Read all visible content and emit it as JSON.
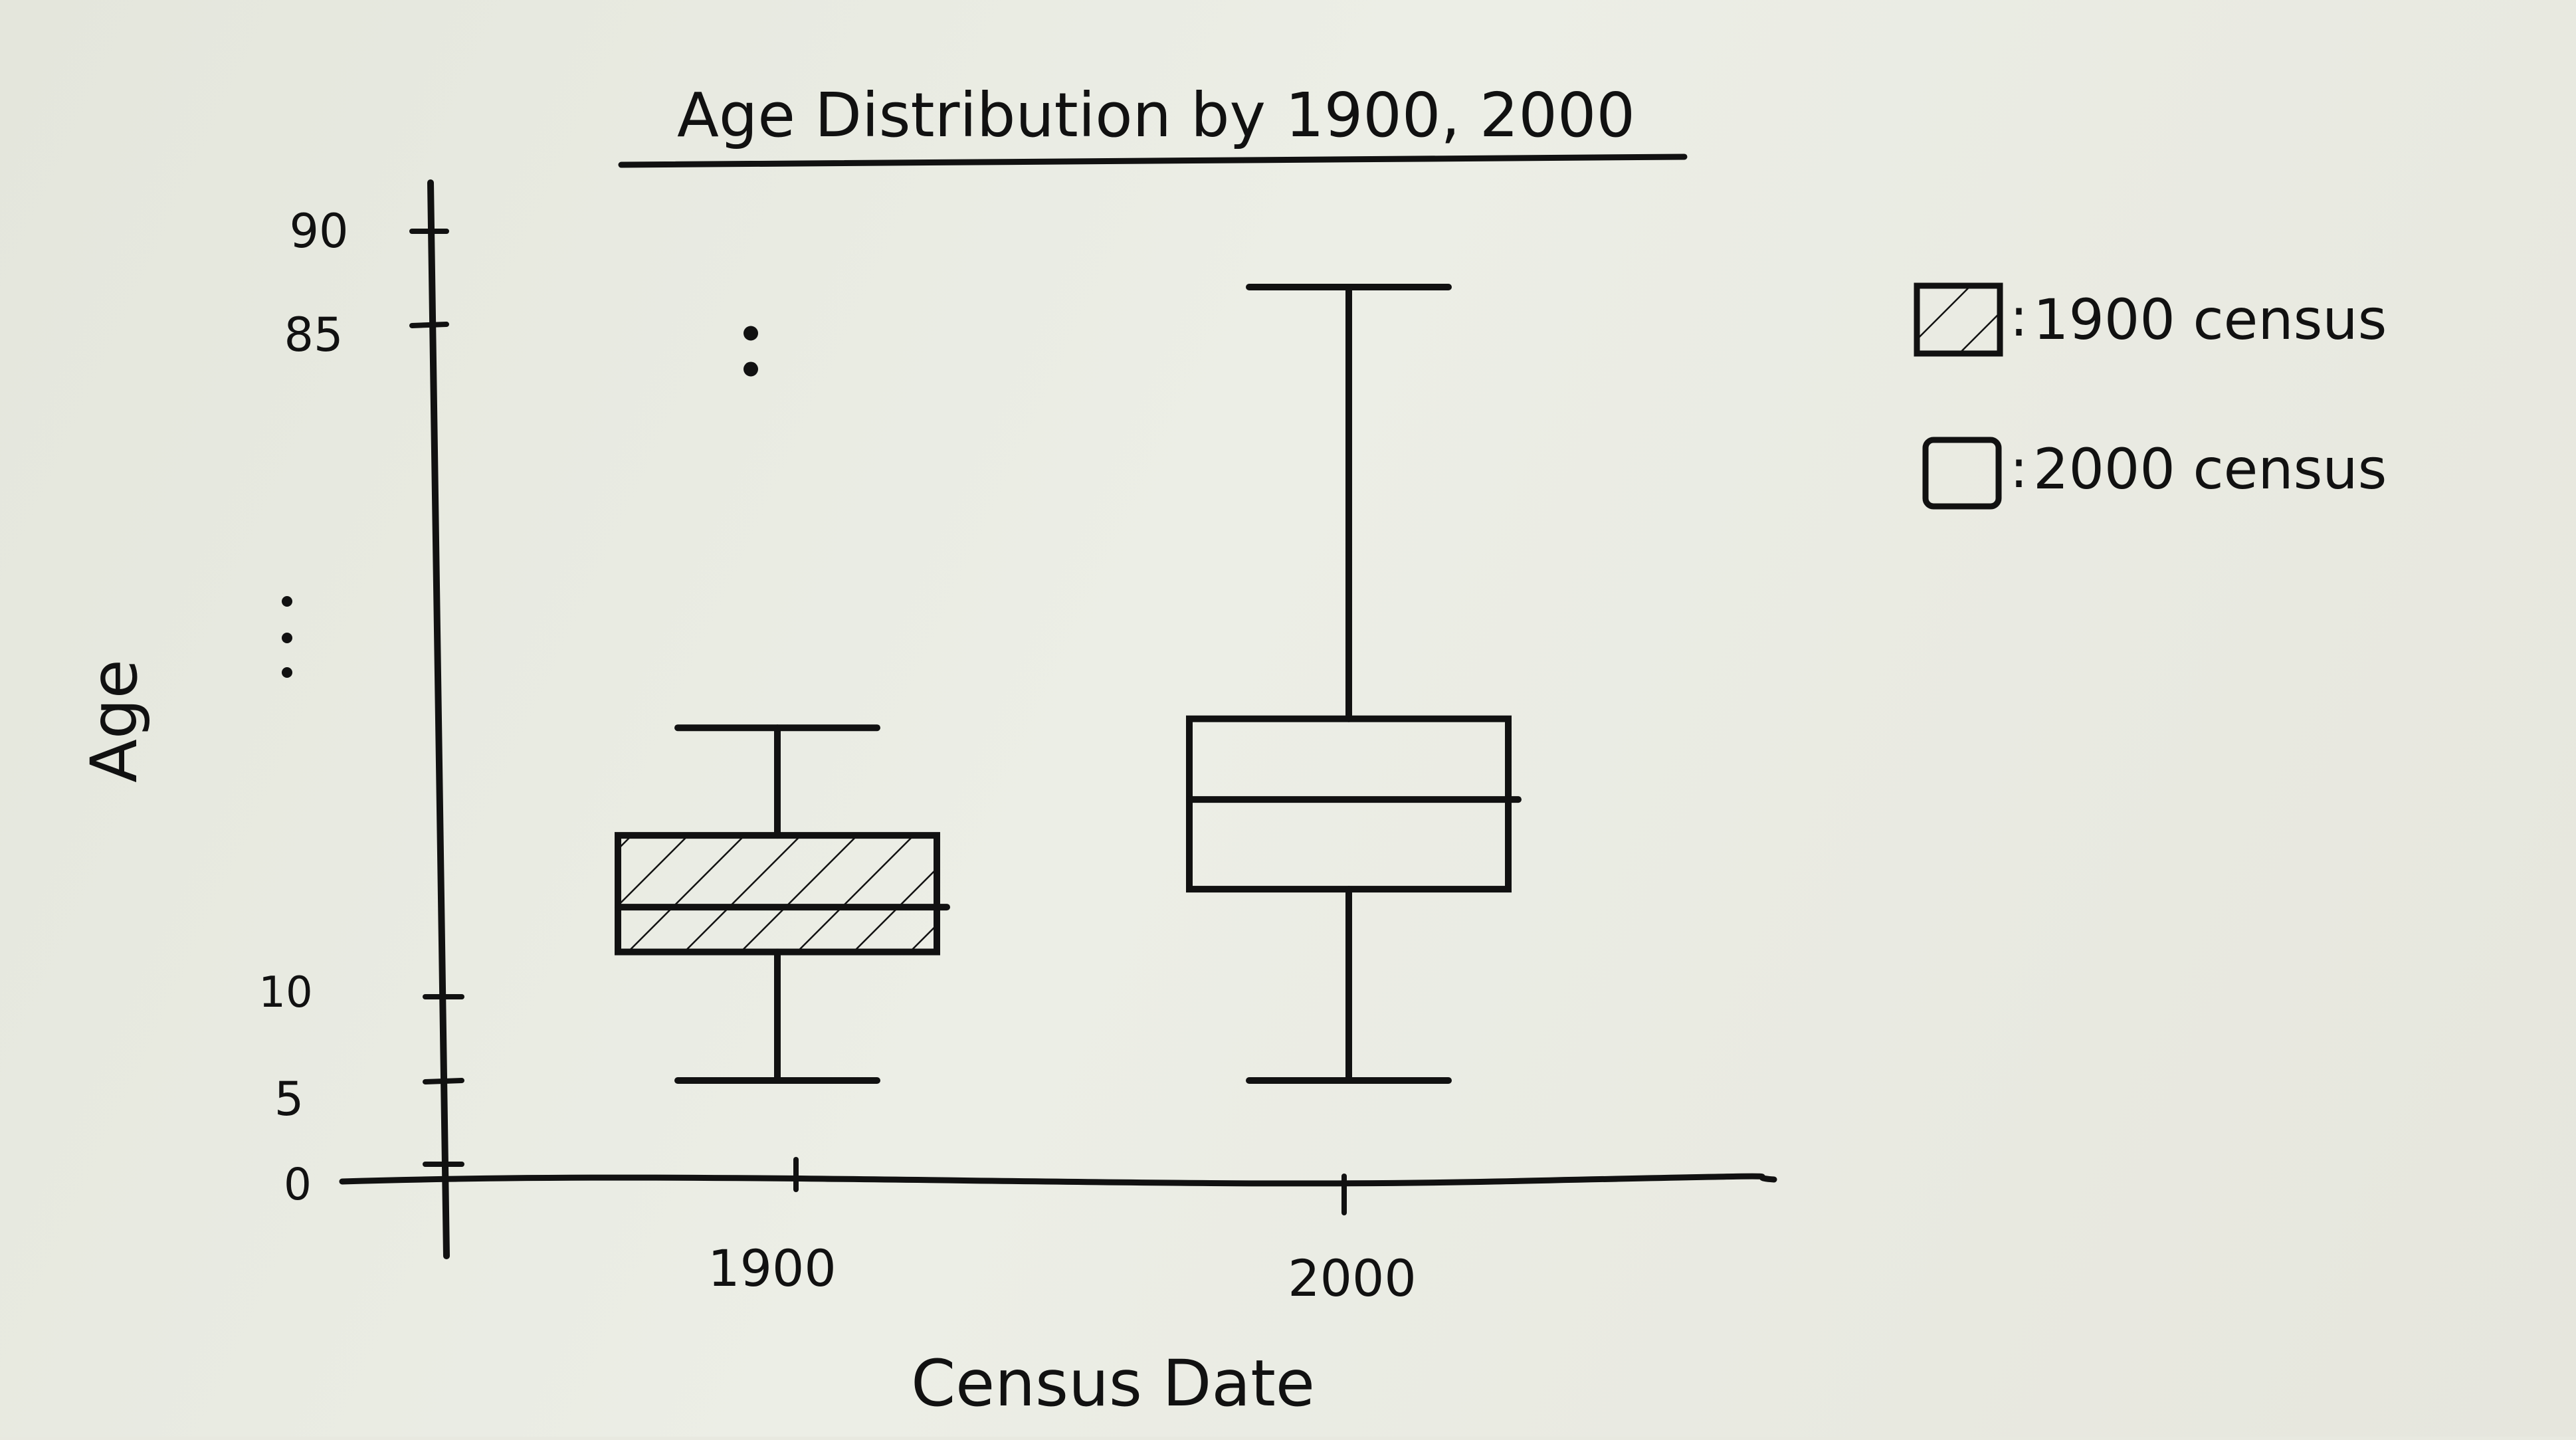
{
  "chart_data": {
    "type": "box",
    "title": "Age Distribution by 1900, 2000",
    "xlabel": "Census Date",
    "ylabel": "Age",
    "y_tick_labels": [
      "0",
      "5",
      "10",
      "85",
      "90"
    ],
    "y_axis_break": true,
    "categories": [
      "1900",
      "2000"
    ],
    "series": [
      {
        "name": "1900 census",
        "category": "1900",
        "hatched": true,
        "whisker_low": 5,
        "q1": 15,
        "median": 20,
        "q3": 28,
        "whisker_high": 40,
        "outliers": [
          80,
          84
        ]
      },
      {
        "name": "2000 census",
        "category": "2000",
        "hatched": false,
        "whisker_low": 5,
        "q1": 22,
        "median": 32,
        "q3": 41,
        "whisker_high": 87,
        "outliers": []
      }
    ],
    "legend_position": "right",
    "legend": [
      {
        "label": "1900 census",
        "swatch": "hatched"
      },
      {
        "label": "2000 census",
        "swatch": "empty"
      }
    ],
    "colors": {
      "ink": "#111111",
      "paper": "#e8e9e0"
    }
  }
}
